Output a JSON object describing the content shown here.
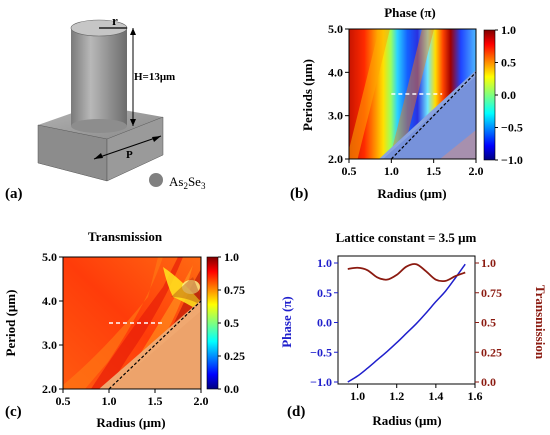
{
  "panels": {
    "a": {
      "label": "(a)",
      "r_label": "r",
      "h_label": "H=13μm",
      "p_label": "P",
      "material_label": "As",
      "material_sub1": "2",
      "material_mid": "Se",
      "material_sub2": "3",
      "colors": {
        "pillar": "#a0a0a0",
        "dark": "#555555",
        "material_dot": "#808080"
      }
    },
    "b": {
      "label": "(b)",
      "title": "Phase (π)",
      "xlabel": "Radius (μm)",
      "ylabel": "Periods (μm)",
      "xticks": [
        "0.5",
        "1.0",
        "1.5",
        "2.0"
      ],
      "yticks": [
        "2.0",
        "3.0",
        "4.0",
        "5.0"
      ],
      "colorbar_ticks": [
        "1.0",
        "0.5",
        "0.0",
        "−0.5",
        "−1.0"
      ]
    },
    "c": {
      "label": "(c)",
      "title": "Transmission",
      "xlabel": "Radius (μm)",
      "ylabel": "Period (μm)",
      "xticks": [
        "0.5",
        "1.0",
        "1.5",
        "2.0"
      ],
      "yticks": [
        "2.0",
        "3.0",
        "4.0",
        "5.0"
      ],
      "colorbar_ticks": [
        "1.0",
        "0.75",
        "0.5",
        "0.25",
        "0.0"
      ]
    },
    "d": {
      "label": "(d)",
      "title": "Lattice constant = 3.5 μm",
      "xlabel": "Radius (μm)",
      "ylabel_left": "Phase (π)",
      "ylabel_right": "Transmission",
      "xticks": [
        "1.0",
        "1.2",
        "1.4",
        "1.6"
      ],
      "yticks_left": [
        "1.0",
        "0.5",
        "0.0",
        "−0.5",
        "−1.0"
      ],
      "yticks_right": [
        "1.0",
        "0.75",
        "0.5",
        "0.25",
        "0.0"
      ],
      "colors": {
        "phase": "#1f1fcc",
        "transmission": "#8b1a10"
      }
    }
  },
  "chart_data": [
    {
      "type": "heatmap",
      "title": "Phase (π)",
      "xlabel": "Radius (μm)",
      "ylabel": "Periods (μm)",
      "xlim": [
        0.5,
        2.0
      ],
      "ylim": [
        2.0,
        5.0
      ],
      "colorbar_range": [
        -1.0,
        1.0
      ],
      "colormap": "jet",
      "cutoff_line": {
        "points": [
          [
            1.0,
            2.0
          ],
          [
            2.0,
            4.0
          ]
        ],
        "style": "dashed",
        "color": "#000000"
      },
      "marker_line": {
        "points": [
          [
            1.0,
            3.5
          ],
          [
            1.6,
            3.5
          ]
        ],
        "style": "dashed",
        "color": "#ffffff"
      }
    },
    {
      "type": "heatmap",
      "title": "Transmission",
      "xlabel": "Radius (μm)",
      "ylabel": "Period (μm)",
      "xlim": [
        0.5,
        2.0
      ],
      "ylim": [
        2.0,
        5.0
      ],
      "colorbar_range": [
        0.0,
        1.0
      ],
      "colormap": "jet",
      "cutoff_line": {
        "points": [
          [
            1.0,
            2.0
          ],
          [
            2.0,
            4.0
          ]
        ],
        "style": "dashed",
        "color": "#000000"
      },
      "marker_line": {
        "points": [
          [
            1.0,
            3.5
          ],
          [
            1.6,
            3.5
          ]
        ],
        "style": "dashed",
        "color": "#ffffff"
      }
    },
    {
      "type": "line",
      "title": "Lattice constant = 3.5 μm",
      "xlabel": "Radius (μm)",
      "xlim": [
        0.9,
        1.6
      ],
      "ylim_left": [
        -1.0,
        1.0
      ],
      "ylim_right": [
        0.0,
        1.0
      ],
      "series": [
        {
          "name": "Phase (π)",
          "axis": "left",
          "x": [
            0.95,
            1.0,
            1.05,
            1.1,
            1.15,
            1.2,
            1.25,
            1.3,
            1.35,
            1.4,
            1.45,
            1.5,
            1.55
          ],
          "values": [
            -1.0,
            -0.9,
            -0.77,
            -0.63,
            -0.49,
            -0.34,
            -0.18,
            -0.02,
            0.16,
            0.35,
            0.53,
            0.75,
            0.98
          ]
        },
        {
          "name": "Transmission",
          "axis": "right",
          "x": [
            0.95,
            1.0,
            1.05,
            1.1,
            1.15,
            1.2,
            1.25,
            1.3,
            1.35,
            1.4,
            1.45,
            1.5,
            1.55
          ],
          "values": [
            0.95,
            0.96,
            0.94,
            0.88,
            0.86,
            0.9,
            0.97,
            0.99,
            0.93,
            0.86,
            0.85,
            0.89,
            0.92
          ]
        }
      ]
    }
  ]
}
